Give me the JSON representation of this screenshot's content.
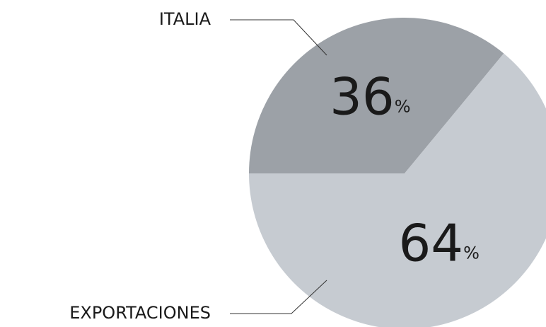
{
  "chart_data": {
    "type": "pie",
    "categories": [
      "ITALIA",
      "EXPORTACIONES"
    ],
    "values": [
      36,
      64
    ],
    "value_labels": [
      "36%",
      "64%"
    ],
    "colors": [
      "#9ca1a7",
      "#c6cbd1"
    ]
  }
}
